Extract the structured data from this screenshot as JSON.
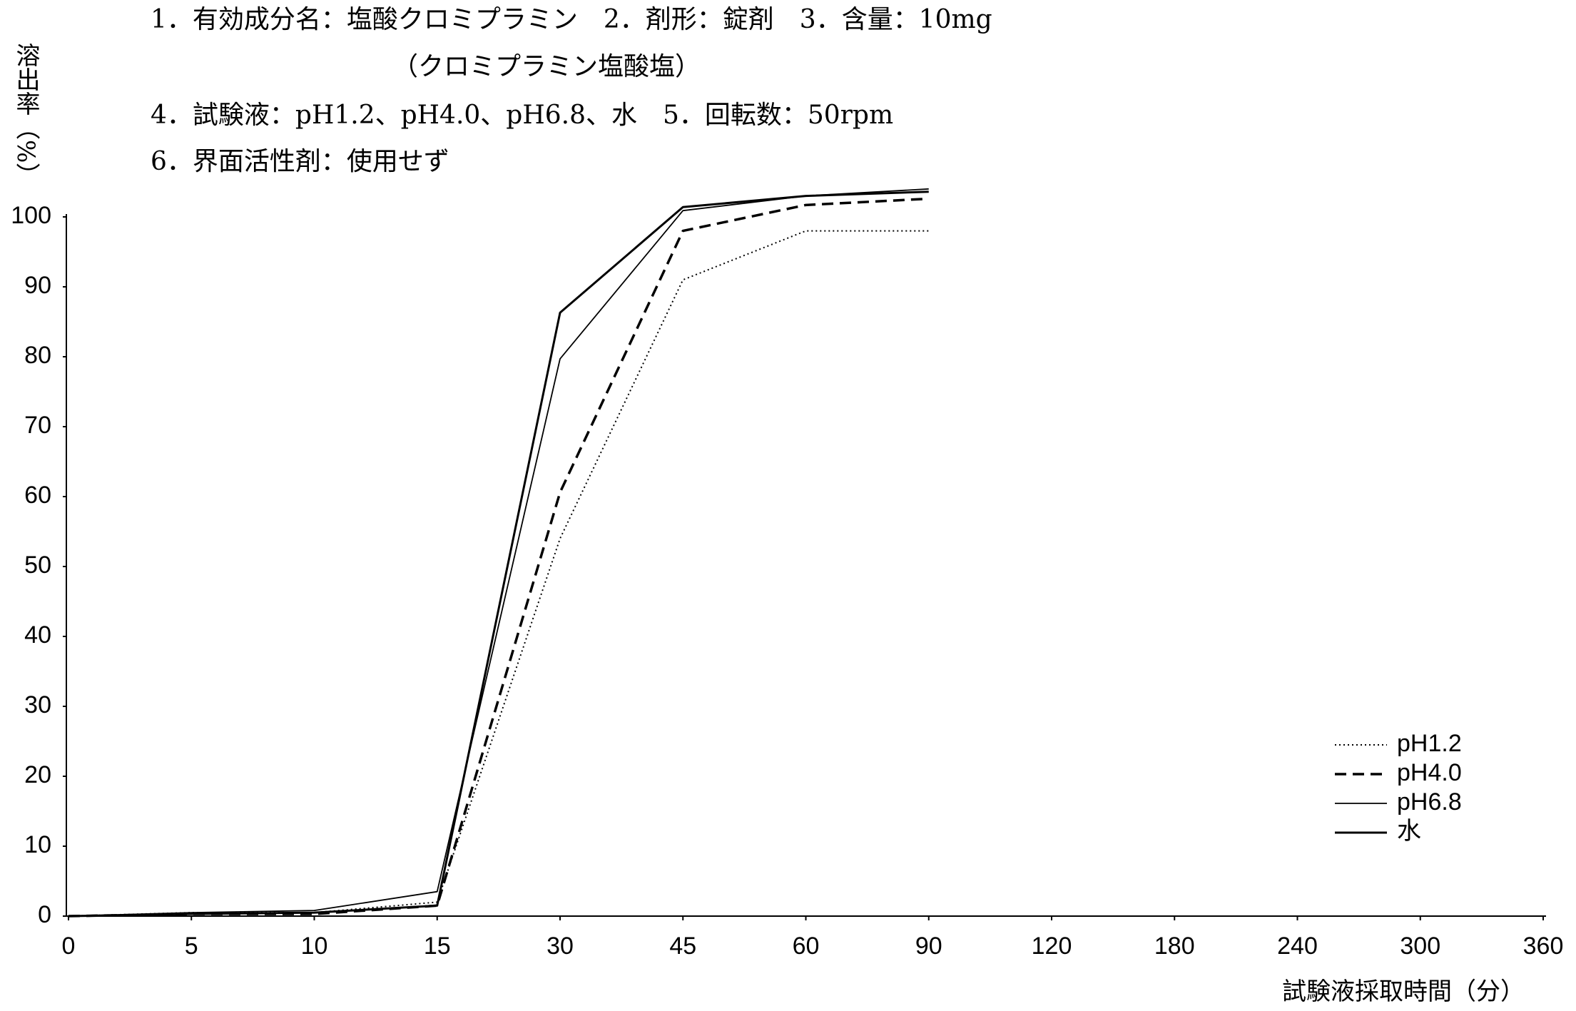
{
  "header": {
    "line1": "1．有効成分名：塩酸クロミプラミン　2．剤形：錠剤　3．含量：10mg",
    "line2": "（クロミプラミン塩酸塩）",
    "line3": "4．試験液：pH1.2、pH4.0、pH6.8、水　5．回転数：50rpm",
    "line4": "6．界面活性剤：使用せず"
  },
  "chart_data": {
    "type": "line",
    "y_label": "溶出率（%）",
    "x_label": "試験液採取時間（分）",
    "categories": [
      "0",
      "5",
      "10",
      "15",
      "30",
      "45",
      "60",
      "90",
      "120",
      "180",
      "240",
      "300",
      "360"
    ],
    "series": [
      {
        "name": "pH1.2",
        "color": "#000000",
        "style": "dotted",
        "width": 2,
        "values": [
          0,
          0.5,
          0.5,
          2,
          54,
          91,
          98,
          98,
          null,
          null,
          null,
          null,
          null
        ]
      },
      {
        "name": "pH4.0",
        "color": "#000000",
        "style": "dashed",
        "width": 3.5,
        "values": [
          0,
          0.3,
          0.3,
          1.5,
          60.6,
          98,
          101.7,
          102.6,
          null,
          null,
          null,
          null,
          null
        ]
      },
      {
        "name": "pH6.8",
        "color": "#000000",
        "style": "solid",
        "width": 1.8,
        "values": [
          0,
          0.5,
          0.8,
          3.5,
          79.7,
          100.9,
          103,
          104,
          null,
          null,
          null,
          null,
          null
        ]
      },
      {
        "name": "水",
        "color": "#000000",
        "style": "solid",
        "width": 3,
        "values": [
          0,
          0.3,
          0.5,
          1.5,
          86.3,
          101.4,
          103,
          103.6,
          null,
          null,
          null,
          null,
          null
        ]
      }
    ],
    "ylim": [
      0,
      100
    ],
    "yticks": [
      0,
      10,
      20,
      30,
      40,
      50,
      60,
      70,
      80,
      90,
      100
    ],
    "grid": false,
    "legend": "bottom-right"
  }
}
